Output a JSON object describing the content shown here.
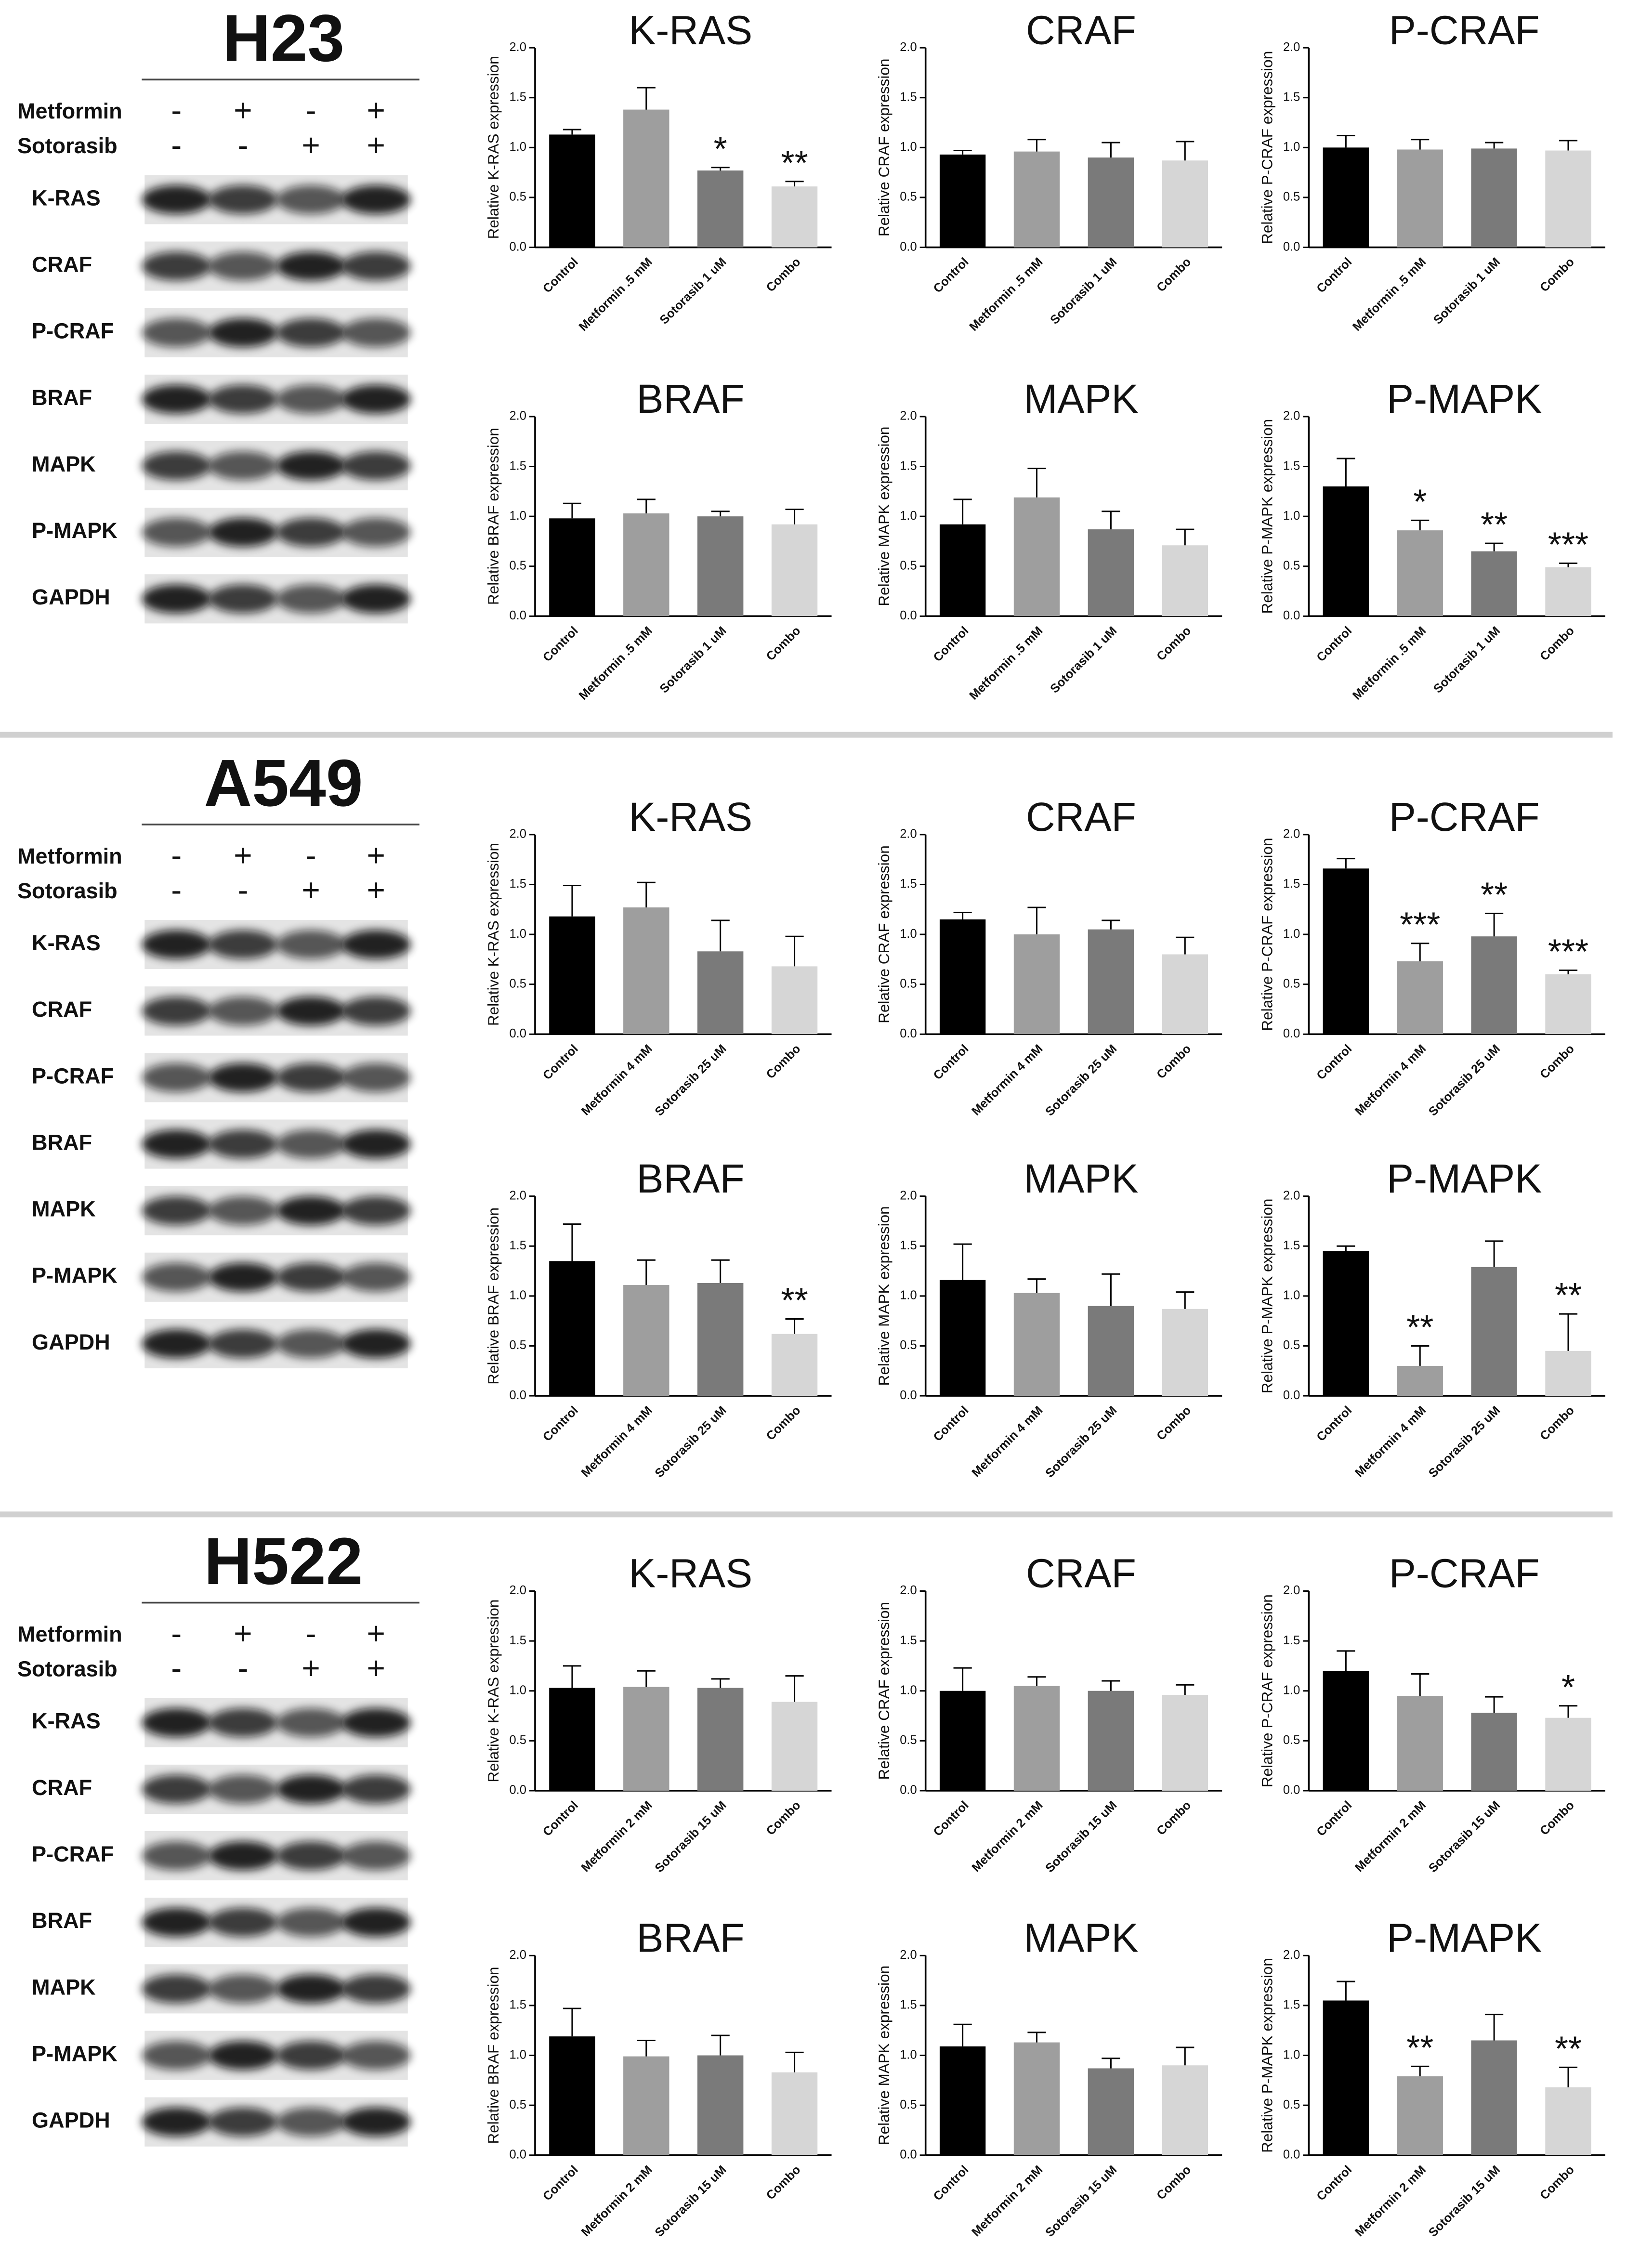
{
  "figure_panels": [
    {
      "cell_line": "H23",
      "treatments": [
        {
          "name": "Metformin",
          "signs": [
            "-",
            "+",
            "-",
            "+"
          ]
        },
        {
          "name": "Sotorasib",
          "signs": [
            "-",
            "-",
            "+",
            "+"
          ]
        }
      ],
      "blots": [
        "K-RAS",
        "CRAF",
        "P-CRAF",
        "BRAF",
        "MAPK",
        "P-MAPK",
        "GAPDH"
      ]
    },
    {
      "cell_line": "A549",
      "treatments": [
        {
          "name": "Metformin",
          "signs": [
            "-",
            "+",
            "-",
            "+"
          ]
        },
        {
          "name": "Sotorasib",
          "signs": [
            "-",
            "-",
            "+",
            "+"
          ]
        }
      ],
      "blots": [
        "K-RAS",
        "CRAF",
        "P-CRAF",
        "BRAF",
        "MAPK",
        "P-MAPK",
        "GAPDH"
      ]
    },
    {
      "cell_line": "H522",
      "treatments": [
        {
          "name": "Metformin",
          "signs": [
            "-",
            "+",
            "-",
            "+"
          ]
        },
        {
          "name": "Sotorasib",
          "signs": [
            "-",
            "-",
            "+",
            "+"
          ]
        }
      ],
      "blots": [
        "K-RAS",
        "CRAF",
        "P-CRAF",
        "BRAF",
        "MAPK",
        "P-MAPK",
        "GAPDH"
      ]
    }
  ],
  "chart_data": [
    {
      "type": "bar",
      "title": "K-RAS",
      "y_label": "Relative K-RAS expression",
      "categories": [
        "Control",
        "Metformin .5 mM",
        "Sotorasib 1 uM",
        "Combo"
      ],
      "values": [
        1.13,
        1.38,
        0.77,
        0.61
      ],
      "errors": [
        0.05,
        0.22,
        0.03,
        0.05
      ],
      "annotations": [
        null,
        null,
        "*",
        "**"
      ],
      "colors": [
        "#000000",
        "#9e9e9e",
        "#7a7a7a",
        "#d6d6d6"
      ],
      "ylim": [
        0,
        2
      ],
      "yticks": [
        {
          "value": 0,
          "label": "0.0"
        },
        {
          "value": 0.5,
          "label": "0.5"
        },
        {
          "value": 1,
          "label": "1.0"
        },
        {
          "value": 1.5,
          "label": "1.5"
        },
        {
          "value": 2,
          "label": "2.0"
        }
      ]
    },
    {
      "type": "bar",
      "title": "CRAF",
      "y_label": "Relative CRAF expression",
      "categories": [
        "Control",
        "Metformin .5 mM",
        "Sotorasib 1 uM",
        "Combo"
      ],
      "values": [
        0.93,
        0.96,
        0.9,
        0.87
      ],
      "errors": [
        0.04,
        0.12,
        0.15,
        0.19
      ],
      "annotations": [
        null,
        null,
        null,
        null
      ],
      "colors": [
        "#000000",
        "#9e9e9e",
        "#7a7a7a",
        "#d6d6d6"
      ],
      "ylim": [
        0,
        2
      ],
      "yticks": [
        {
          "value": 0,
          "label": "0.0"
        },
        {
          "value": 0.5,
          "label": "0.5"
        },
        {
          "value": 1,
          "label": "1.0"
        },
        {
          "value": 1.5,
          "label": "1.5"
        },
        {
          "value": 2,
          "label": "2.0"
        }
      ]
    },
    {
      "type": "bar",
      "title": "P-CRAF",
      "y_label": "Relative P-CRAF expression",
      "categories": [
        "Control",
        "Metformin .5 mM",
        "Sotorasib 1 uM",
        "Combo"
      ],
      "values": [
        1.0,
        0.98,
        0.99,
        0.97
      ],
      "errors": [
        0.12,
        0.1,
        0.06,
        0.1
      ],
      "annotations": [
        null,
        null,
        null,
        null
      ],
      "colors": [
        "#000000",
        "#9e9e9e",
        "#7a7a7a",
        "#d6d6d6"
      ],
      "ylim": [
        0,
        2
      ],
      "yticks": [
        {
          "value": 0,
          "label": "0.0"
        },
        {
          "value": 0.5,
          "label": "0.5"
        },
        {
          "value": 1,
          "label": "1.0"
        },
        {
          "value": 1.5,
          "label": "1.5"
        },
        {
          "value": 2,
          "label": "2.0"
        }
      ]
    },
    {
      "type": "bar",
      "title": "BRAF",
      "y_label": "Relative BRAF expression",
      "categories": [
        "Control",
        "Metformin .5 mM",
        "Sotorasib 1 uM",
        "Combo"
      ],
      "values": [
        0.98,
        1.03,
        1.0,
        0.92
      ],
      "errors": [
        0.15,
        0.14,
        0.05,
        0.15
      ],
      "annotations": [
        null,
        null,
        null,
        null
      ],
      "colors": [
        "#000000",
        "#9e9e9e",
        "#7a7a7a",
        "#d6d6d6"
      ],
      "ylim": [
        0,
        2
      ],
      "yticks": [
        {
          "value": 0,
          "label": "0.0"
        },
        {
          "value": 0.5,
          "label": "0.5"
        },
        {
          "value": 1,
          "label": "1.0"
        },
        {
          "value": 1.5,
          "label": "1.5"
        },
        {
          "value": 2,
          "label": "2.0"
        }
      ]
    },
    {
      "type": "bar",
      "title": "MAPK",
      "y_label": "Relative MAPK expression",
      "categories": [
        "Control",
        "Metformin .5 mM",
        "Sotorasib 1 uM",
        "Combo"
      ],
      "values": [
        0.92,
        1.19,
        0.87,
        0.71
      ],
      "errors": [
        0.25,
        0.29,
        0.18,
        0.16
      ],
      "annotations": [
        null,
        null,
        null,
        null
      ],
      "colors": [
        "#000000",
        "#9e9e9e",
        "#7a7a7a",
        "#d6d6d6"
      ],
      "ylim": [
        0,
        2
      ],
      "yticks": [
        {
          "value": 0,
          "label": "0.0"
        },
        {
          "value": 0.5,
          "label": "0.5"
        },
        {
          "value": 1,
          "label": "1.0"
        },
        {
          "value": 1.5,
          "label": "1.5"
        },
        {
          "value": 2,
          "label": "2.0"
        }
      ]
    },
    {
      "type": "bar",
      "title": "P-MAPK",
      "y_label": "Relative P-MAPK expression",
      "categories": [
        "Control",
        "Metformin .5 mM",
        "Sotorasib 1 uM",
        "Combo"
      ],
      "values": [
        1.3,
        0.86,
        0.65,
        0.49
      ],
      "errors": [
        0.28,
        0.1,
        0.08,
        0.04
      ],
      "annotations": [
        null,
        "*",
        "**",
        "***"
      ],
      "colors": [
        "#000000",
        "#9e9e9e",
        "#7a7a7a",
        "#d6d6d6"
      ],
      "ylim": [
        0,
        2
      ],
      "yticks": [
        {
          "value": 0,
          "label": "0.0"
        },
        {
          "value": 0.5,
          "label": "0.5"
        },
        {
          "value": 1,
          "label": "1.0"
        },
        {
          "value": 1.5,
          "label": "1.5"
        },
        {
          "value": 2,
          "label": "2.0"
        }
      ]
    },
    {
      "type": "bar",
      "title": "K-RAS",
      "y_label": "Relative K-RAS expression",
      "categories": [
        "Control",
        "Metformin 4 mM",
        "Sotorasib 25 uM",
        "Combo"
      ],
      "values": [
        1.18,
        1.27,
        0.83,
        0.68
      ],
      "errors": [
        0.31,
        0.25,
        0.31,
        0.3
      ],
      "annotations": [
        null,
        null,
        null,
        null
      ],
      "colors": [
        "#000000",
        "#9e9e9e",
        "#7a7a7a",
        "#d6d6d6"
      ],
      "ylim": [
        0,
        2
      ],
      "yticks": [
        {
          "value": 0,
          "label": "0.0"
        },
        {
          "value": 0.5,
          "label": "0.5"
        },
        {
          "value": 1,
          "label": "1.0"
        },
        {
          "value": 1.5,
          "label": "1.5"
        },
        {
          "value": 2,
          "label": "2.0"
        }
      ]
    },
    {
      "type": "bar",
      "title": "CRAF",
      "y_label": "Relative CRAF expression",
      "categories": [
        "Control",
        "Metformin 4 mM",
        "Sotorasib 25 uM",
        "Combo"
      ],
      "values": [
        1.15,
        1.0,
        1.05,
        0.8
      ],
      "errors": [
        0.07,
        0.27,
        0.09,
        0.17
      ],
      "annotations": [
        null,
        null,
        null,
        null
      ],
      "colors": [
        "#000000",
        "#9e9e9e",
        "#7a7a7a",
        "#d6d6d6"
      ],
      "ylim": [
        0,
        2
      ],
      "yticks": [
        {
          "value": 0,
          "label": "0.0"
        },
        {
          "value": 0.5,
          "label": "0.5"
        },
        {
          "value": 1,
          "label": "1.0"
        },
        {
          "value": 1.5,
          "label": "1.5"
        },
        {
          "value": 2,
          "label": "2.0"
        }
      ]
    },
    {
      "type": "bar",
      "title": "P-CRAF",
      "y_label": "Relative P-CRAF expression",
      "categories": [
        "Control",
        "Metformin 4 mM",
        "Sotorasib 25 uM",
        "Combo"
      ],
      "values": [
        1.66,
        0.73,
        0.98,
        0.6
      ],
      "errors": [
        0.1,
        0.18,
        0.23,
        0.04
      ],
      "annotations": [
        null,
        "***",
        "**",
        "***"
      ],
      "colors": [
        "#000000",
        "#9e9e9e",
        "#7a7a7a",
        "#d6d6d6"
      ],
      "ylim": [
        0,
        2
      ],
      "yticks": [
        {
          "value": 0,
          "label": "0.0"
        },
        {
          "value": 0.5,
          "label": "0.5"
        },
        {
          "value": 1,
          "label": "1.0"
        },
        {
          "value": 1.5,
          "label": "1.5"
        },
        {
          "value": 2,
          "label": "2.0"
        }
      ]
    },
    {
      "type": "bar",
      "title": "BRAF",
      "y_label": "Relative BRAF expression",
      "categories": [
        "Control",
        "Metformin 4 mM",
        "Sotorasib 25 uM",
        "Combo"
      ],
      "values": [
        1.35,
        1.11,
        1.13,
        0.62
      ],
      "errors": [
        0.37,
        0.25,
        0.23,
        0.15
      ],
      "annotations": [
        null,
        null,
        null,
        "**"
      ],
      "colors": [
        "#000000",
        "#9e9e9e",
        "#7a7a7a",
        "#d6d6d6"
      ],
      "ylim": [
        0,
        2
      ],
      "yticks": [
        {
          "value": 0,
          "label": "0.0"
        },
        {
          "value": 0.5,
          "label": "0.5"
        },
        {
          "value": 1,
          "label": "1.0"
        },
        {
          "value": 1.5,
          "label": "1.5"
        },
        {
          "value": 2,
          "label": "2.0"
        }
      ]
    },
    {
      "type": "bar",
      "title": "MAPK",
      "y_label": "Relative MAPK expression",
      "categories": [
        "Control",
        "Metformin 4 mM",
        "Sotorasib 25 uM",
        "Combo"
      ],
      "values": [
        1.16,
        1.03,
        0.9,
        0.87
      ],
      "errors": [
        0.36,
        0.14,
        0.32,
        0.17
      ],
      "annotations": [
        null,
        null,
        null,
        null
      ],
      "colors": [
        "#000000",
        "#9e9e9e",
        "#7a7a7a",
        "#d6d6d6"
      ],
      "ylim": [
        0,
        2
      ],
      "yticks": [
        {
          "value": 0,
          "label": "0.0"
        },
        {
          "value": 0.5,
          "label": "0.5"
        },
        {
          "value": 1,
          "label": "1.0"
        },
        {
          "value": 1.5,
          "label": "1.5"
        },
        {
          "value": 2,
          "label": "2.0"
        }
      ]
    },
    {
      "type": "bar",
      "title": "P-MAPK",
      "y_label": "Relative P-MAPK expression",
      "categories": [
        "Control",
        "Metformin 4 mM",
        "Sotorasib 25 uM",
        "Combo"
      ],
      "values": [
        1.45,
        0.3,
        1.29,
        0.45
      ],
      "errors": [
        0.05,
        0.2,
        0.26,
        0.37
      ],
      "annotations": [
        null,
        "**",
        null,
        "**"
      ],
      "colors": [
        "#000000",
        "#9e9e9e",
        "#7a7a7a",
        "#d6d6d6"
      ],
      "ylim": [
        0,
        2
      ],
      "yticks": [
        {
          "value": 0,
          "label": "0.0"
        },
        {
          "value": 0.5,
          "label": "0.5"
        },
        {
          "value": 1,
          "label": "1.0"
        },
        {
          "value": 1.5,
          "label": "1.5"
        },
        {
          "value": 2,
          "label": "2.0"
        }
      ]
    },
    {
      "type": "bar",
      "title": "K-RAS",
      "y_label": "Relative K-RAS expression",
      "categories": [
        "Control",
        "Metformin 2 mM",
        "Sotorasib 15 uM",
        "Combo"
      ],
      "values": [
        1.03,
        1.04,
        1.03,
        0.89
      ],
      "errors": [
        0.22,
        0.16,
        0.09,
        0.26
      ],
      "annotations": [
        null,
        null,
        null,
        null
      ],
      "colors": [
        "#000000",
        "#9e9e9e",
        "#7a7a7a",
        "#d6d6d6"
      ],
      "ylim": [
        0,
        2
      ],
      "yticks": [
        {
          "value": 0,
          "label": "0.0"
        },
        {
          "value": 0.5,
          "label": "0.5"
        },
        {
          "value": 1,
          "label": "1.0"
        },
        {
          "value": 1.5,
          "label": "1.5"
        },
        {
          "value": 2,
          "label": "2.0"
        }
      ]
    },
    {
      "type": "bar",
      "title": "CRAF",
      "y_label": "Relative CRAF expression",
      "categories": [
        "Control",
        "Metformin 2 mM",
        "Sotorasib 15 uM",
        "Combo"
      ],
      "values": [
        1.0,
        1.05,
        1.0,
        0.96
      ],
      "errors": [
        0.23,
        0.09,
        0.1,
        0.1
      ],
      "annotations": [
        null,
        null,
        null,
        null
      ],
      "colors": [
        "#000000",
        "#9e9e9e",
        "#7a7a7a",
        "#d6d6d6"
      ],
      "ylim": [
        0,
        2
      ],
      "yticks": [
        {
          "value": 0,
          "label": "0.0"
        },
        {
          "value": 0.5,
          "label": "0.5"
        },
        {
          "value": 1,
          "label": "1.0"
        },
        {
          "value": 1.5,
          "label": "1.5"
        },
        {
          "value": 2,
          "label": "2.0"
        }
      ]
    },
    {
      "type": "bar",
      "title": "P-CRAF",
      "y_label": "Relative P-CRAF expression",
      "categories": [
        "Control",
        "Metformin 2 mM",
        "Sotorasib 15 uM",
        "Combo"
      ],
      "values": [
        1.2,
        0.95,
        0.78,
        0.73
      ],
      "errors": [
        0.2,
        0.22,
        0.16,
        0.12
      ],
      "annotations": [
        null,
        null,
        null,
        "*"
      ],
      "colors": [
        "#000000",
        "#9e9e9e",
        "#7a7a7a",
        "#d6d6d6"
      ],
      "ylim": [
        0,
        2
      ],
      "yticks": [
        {
          "value": 0,
          "label": "0.0"
        },
        {
          "value": 0.5,
          "label": "0.5"
        },
        {
          "value": 1,
          "label": "1.0"
        },
        {
          "value": 1.5,
          "label": "1.5"
        },
        {
          "value": 2,
          "label": "2.0"
        }
      ]
    },
    {
      "type": "bar",
      "title": "BRAF",
      "y_label": "Relative BRAF expression",
      "categories": [
        "Control",
        "Metformin 2 mM",
        "Sotorasib 15 uM",
        "Combo"
      ],
      "values": [
        1.19,
        0.99,
        1.0,
        0.83
      ],
      "errors": [
        0.28,
        0.16,
        0.2,
        0.2
      ],
      "annotations": [
        null,
        null,
        null,
        null
      ],
      "colors": [
        "#000000",
        "#9e9e9e",
        "#7a7a7a",
        "#d6d6d6"
      ],
      "ylim": [
        0,
        2
      ],
      "yticks": [
        {
          "value": 0,
          "label": "0.0"
        },
        {
          "value": 0.5,
          "label": "0.5"
        },
        {
          "value": 1,
          "label": "1.0"
        },
        {
          "value": 1.5,
          "label": "1.5"
        },
        {
          "value": 2,
          "label": "2.0"
        }
      ]
    },
    {
      "type": "bar",
      "title": "MAPK",
      "y_label": "Relative MAPK expression",
      "categories": [
        "Control",
        "Metformin 2 mM",
        "Sotorasib 15 uM",
        "Combo"
      ],
      "values": [
        1.09,
        1.13,
        0.87,
        0.9
      ],
      "errors": [
        0.22,
        0.1,
        0.1,
        0.18
      ],
      "annotations": [
        null,
        null,
        null,
        null
      ],
      "colors": [
        "#000000",
        "#9e9e9e",
        "#7a7a7a",
        "#d6d6d6"
      ],
      "ylim": [
        0,
        2
      ],
      "yticks": [
        {
          "value": 0,
          "label": "0.0"
        },
        {
          "value": 0.5,
          "label": "0.5"
        },
        {
          "value": 1,
          "label": "1.0"
        },
        {
          "value": 1.5,
          "label": "1.5"
        },
        {
          "value": 2,
          "label": "2.0"
        }
      ]
    },
    {
      "type": "bar",
      "title": "P-MAPK",
      "y_label": "Relative P-MAPK expression",
      "categories": [
        "Control",
        "Metformin 2 mM",
        "Sotorasib 15 uM",
        "Combo"
      ],
      "values": [
        1.55,
        0.79,
        1.15,
        0.68
      ],
      "errors": [
        0.19,
        0.1,
        0.26,
        0.2
      ],
      "annotations": [
        null,
        "**",
        null,
        "**"
      ],
      "colors": [
        "#000000",
        "#9e9e9e",
        "#7a7a7a",
        "#d6d6d6"
      ],
      "ylim": [
        0,
        2
      ],
      "yticks": [
        {
          "value": 0,
          "label": "0.0"
        },
        {
          "value": 0.5,
          "label": "0.5"
        },
        {
          "value": 1,
          "label": "1.0"
        },
        {
          "value": 1.5,
          "label": "1.5"
        },
        {
          "value": 2,
          "label": "2.0"
        }
      ]
    }
  ]
}
